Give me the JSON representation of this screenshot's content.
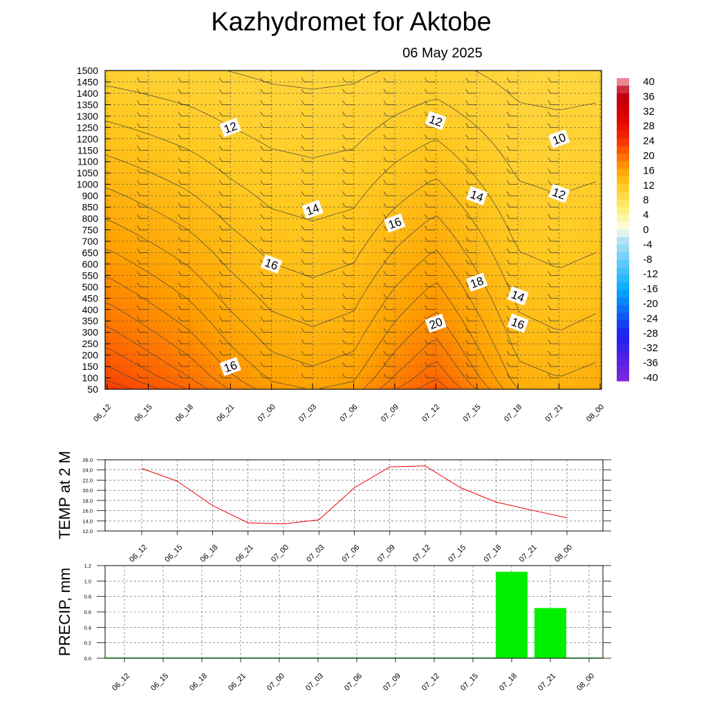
{
  "header": {
    "title": "Kazhydromet  for Aktobe",
    "date": "06 May 2025"
  },
  "chart_data": [
    {
      "type": "heatmap",
      "xlabel": "",
      "ylabel": "",
      "x_ticks": [
        "06_12",
        "06_15",
        "06_18",
        "06_21",
        "07_00",
        "07_03",
        "07_06",
        "07_09",
        "07_12",
        "07_15",
        "07_18",
        "07_21",
        "08_00"
      ],
      "y_ticks": [
        1500,
        1450,
        1400,
        1350,
        1300,
        1250,
        1200,
        1150,
        1100,
        1050,
        1000,
        900,
        850,
        800,
        750,
        700,
        650,
        600,
        550,
        500,
        450,
        400,
        350,
        300,
        250,
        200,
        150,
        100,
        50
      ],
      "colorbar": {
        "labels": [
          40,
          36,
          32,
          28,
          24,
          20,
          16,
          12,
          8,
          4,
          0,
          -4,
          -8,
          -12,
          -16,
          -20,
          -24,
          -28,
          -32,
          -36,
          -40
        ]
      },
      "surface_temperature_by_time": [
        23,
        21.5,
        20,
        18,
        16.5,
        16,
        16.5,
        19,
        21,
        18,
        15,
        14.5,
        15
      ],
      "contour_labels": [
        {
          "text": "12",
          "time": "06_21",
          "level": 1250
        },
        {
          "text": "12",
          "time": "07_12",
          "level": 1280
        },
        {
          "text": "10",
          "time": "07_21",
          "level": 1200
        },
        {
          "text": "12",
          "time": "07_21",
          "level": 920
        },
        {
          "text": "14",
          "time": "07_03",
          "level": 840
        },
        {
          "text": "14",
          "time": "07_15",
          "level": 900
        },
        {
          "text": "16",
          "time": "07_09",
          "level": 780
        },
        {
          "text": "16",
          "time": "07_00",
          "level": 600
        },
        {
          "text": "18",
          "time": "07_15",
          "level": 520
        },
        {
          "text": "14",
          "time": "07_18",
          "level": 460
        },
        {
          "text": "20",
          "time": "07_12",
          "level": 340
        },
        {
          "text": "16",
          "time": "07_18",
          "level": 340
        },
        {
          "text": "16",
          "time": "06_21",
          "level": 150
        }
      ]
    },
    {
      "type": "line",
      "xlabel": "",
      "ylabel": "TEMP at 2 M",
      "ylim": [
        12,
        26
      ],
      "y_ticks": [
        "26.0",
        "24.0",
        "22.0",
        "20.0",
        "18.0",
        "16.0",
        "14.0",
        "12.0"
      ],
      "categories": [
        "06_12",
        "06_15",
        "06_18",
        "06_21",
        "07_00",
        "07_03",
        "07_06",
        "07_09",
        "07_12",
        "07_15",
        "07_18",
        "07_21",
        "08_00"
      ],
      "series": [
        {
          "values": [
            24.3,
            21.8,
            17.0,
            13.6,
            13.4,
            14.2,
            20.5,
            24.6,
            24.8,
            20.5,
            17.7,
            16.1,
            14.6
          ],
          "color": "#ee0000"
        }
      ]
    },
    {
      "type": "bar",
      "xlabel": "",
      "ylabel": "PRECIP, mm",
      "ylim": [
        0,
        1.2
      ],
      "y_ticks": [
        "1.2",
        "1.0",
        "0.8",
        "0.6",
        "0.4",
        "0.2",
        "0.0"
      ],
      "categories": [
        "06_12",
        "06_15",
        "06_18",
        "06_21",
        "07_00",
        "07_03",
        "07_06",
        "07_09",
        "07_12",
        "07_15",
        "07_18",
        "07_21",
        "08_00"
      ],
      "series": [
        {
          "values": [
            0,
            0,
            0,
            0,
            0,
            0,
            0,
            0,
            0,
            0,
            1.12,
            0.65,
            0
          ],
          "color": "#00ee00"
        }
      ]
    }
  ]
}
